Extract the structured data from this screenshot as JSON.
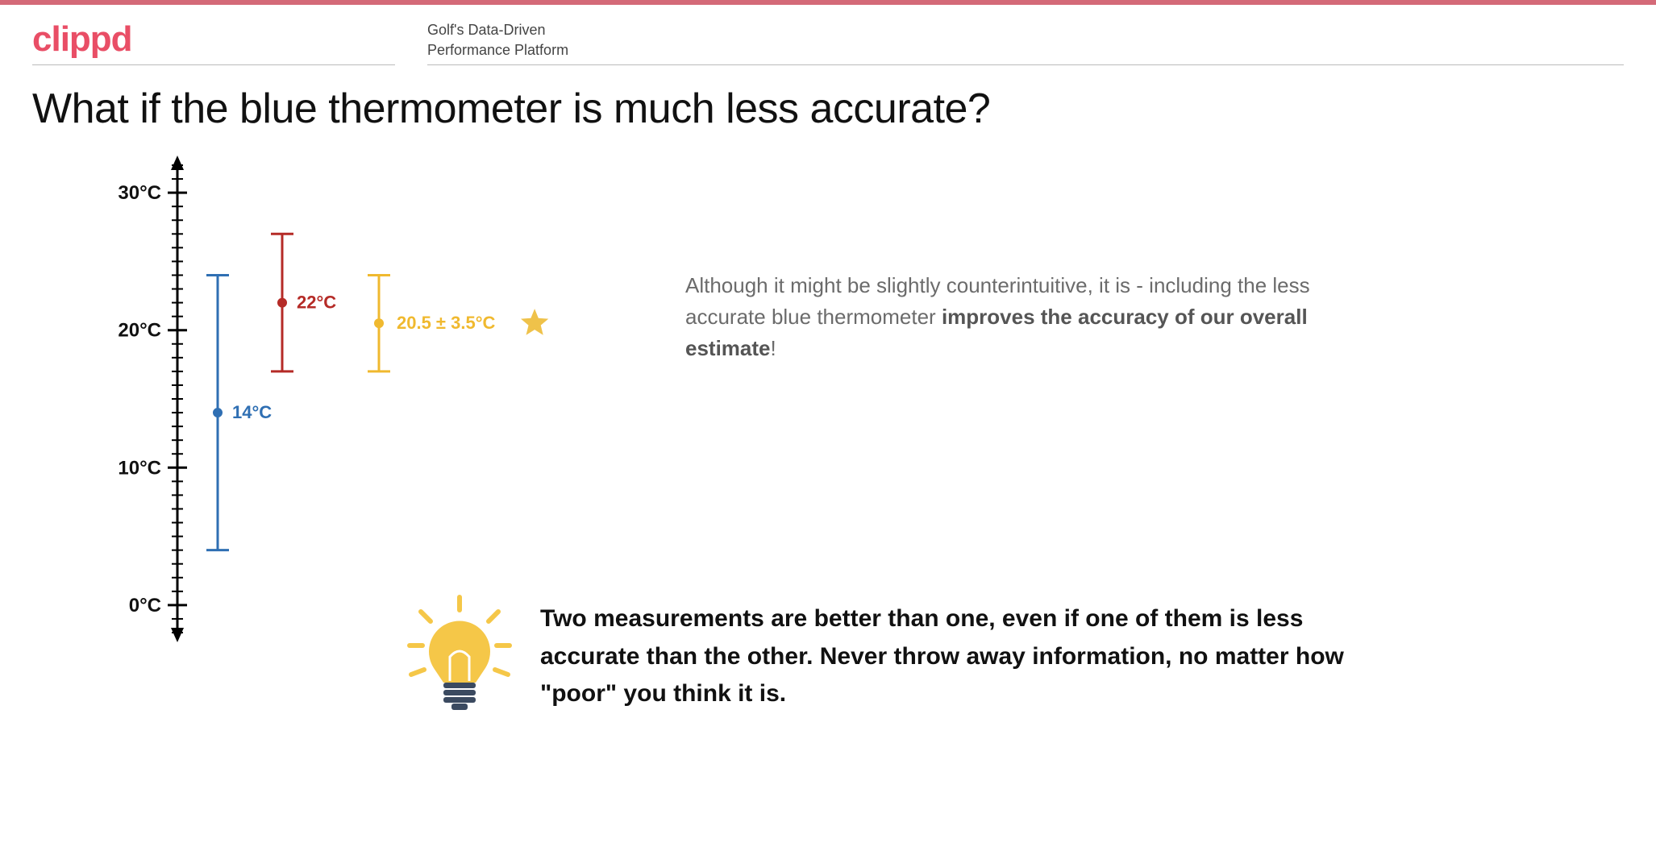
{
  "brand": {
    "text": "clippd",
    "color": "#e94e66"
  },
  "topbar_color": "#d46a78",
  "tagline": {
    "line1": "Golf's Data-Driven",
    "line2": "Performance Platform"
  },
  "title": "What if the blue thermometer is much less accurate?",
  "axis": {
    "min": -2,
    "max": 32,
    "ticks_major": [
      0,
      10,
      20,
      30
    ],
    "labels": [
      "0°C",
      "10°C",
      "20°C",
      "30°C"
    ],
    "stroke": "#000000",
    "stroke_width": 3,
    "label_fontsize": 24,
    "label_fontweight": 700
  },
  "series": [
    {
      "name": "blue",
      "x": 150,
      "mean": 14,
      "low": 4,
      "high": 24,
      "color": "#2f6fb3",
      "label": "14°C",
      "label_dx": 18
    },
    {
      "name": "red",
      "x": 230,
      "mean": 22,
      "low": 17,
      "high": 27,
      "color": "#b52b27",
      "label": "22°C",
      "label_dx": 18
    },
    {
      "name": "yellow",
      "x": 350,
      "mean": 20.5,
      "low": 17,
      "high": 24,
      "color": "#f0b92f",
      "label": "20.5 ± 3.5°C",
      "label_dx": 22,
      "star": true
    }
  ],
  "errorbar": {
    "cap_halfwidth": 14,
    "stroke_width": 3,
    "dot_radius": 6,
    "label_fontsize": 22,
    "label_fontweight": 700
  },
  "star_color": "#efc24a",
  "explain": {
    "pre": "Although it might be slightly counterintuitive, it is - including the less accurate blue thermometer ",
    "bold": "improves the accuracy of our overall estimate",
    "post": "!"
  },
  "takeaway": "Two measurements are better than one, even if one of them is less accurate than the other. Never throw away information, no matter how \"poor\" you think it is.",
  "bulb_colors": {
    "glass": "#f5c748",
    "base": "#3b4a60",
    "rays": "#f5c748",
    "filament": "#ffffff"
  }
}
